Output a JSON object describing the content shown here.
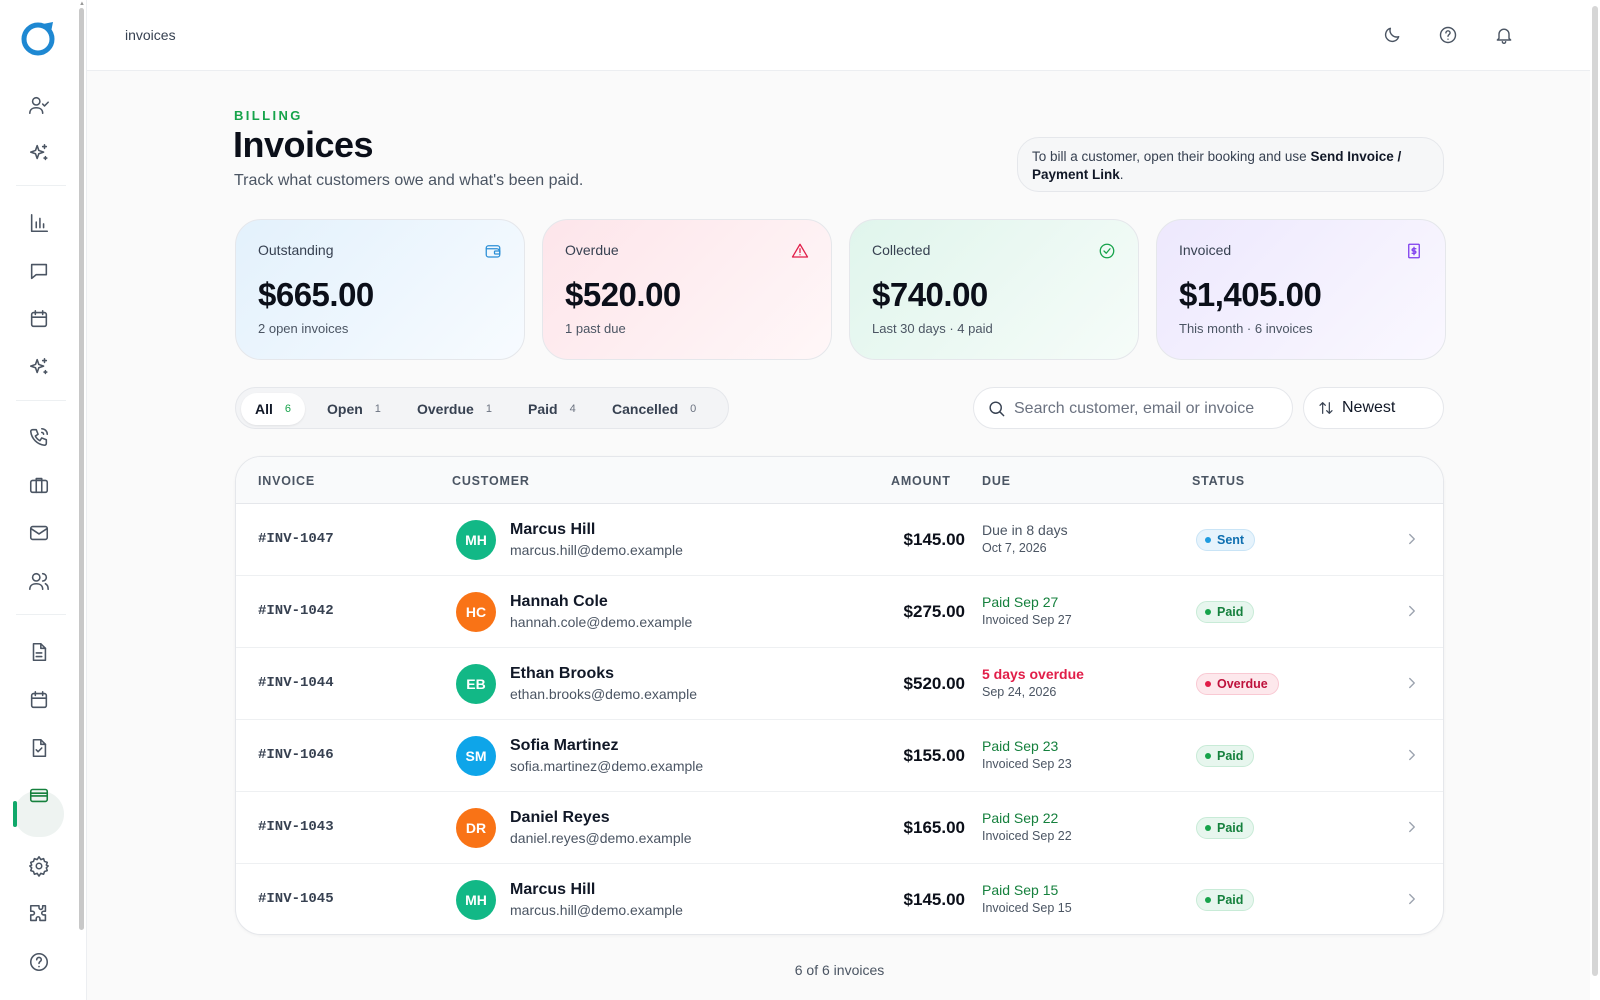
{
  "topbar": {
    "breadcrumb": "invoices"
  },
  "header": {
    "eyebrow": "BILLING",
    "title": "Invoices",
    "subtitle": "Track what customers owe and what's been paid.",
    "hint_prefix": "To bill a customer, open their booking and use ",
    "hint_action": "Send Invoice / Payment Link",
    "hint_suffix": "."
  },
  "stats": [
    {
      "label": "Outstanding",
      "value": "$665.00",
      "note": "2 open invoices",
      "icon": "wallet-icon"
    },
    {
      "label": "Overdue",
      "value": "$520.00",
      "note": "1 past due",
      "icon": "alert-triangle-icon"
    },
    {
      "label": "Collected",
      "value": "$740.00",
      "note": "Last 30 days · 4 paid",
      "icon": "check-circle-icon"
    },
    {
      "label": "Invoiced",
      "value": "$1,405.00",
      "note": "This month · 6 invoices",
      "icon": "receipt-icon"
    }
  ],
  "filters": [
    {
      "label": "All",
      "count": "6",
      "active": true
    },
    {
      "label": "Open",
      "count": "1"
    },
    {
      "label": "Overdue",
      "count": "1"
    },
    {
      "label": "Paid",
      "count": "4"
    },
    {
      "label": "Cancelled",
      "count": "0"
    }
  ],
  "search": {
    "placeholder": "Search customer, email or invoice",
    "value": ""
  },
  "sort": {
    "label": "Newest"
  },
  "table": {
    "columns": [
      "INVOICE",
      "CUSTOMER",
      "AMOUNT",
      "DUE",
      "STATUS"
    ],
    "rows": [
      {
        "id": "#INV-1047",
        "initials": "MH",
        "avatar_color": "#12b886",
        "name": "Marcus Hill",
        "email": "marcus.hill@demo.example",
        "amount": "$145.00",
        "due1": "Due in 8 days",
        "due2": "Oct 7, 2026",
        "due_tone": "normal",
        "status": "Sent",
        "status_kind": "sent"
      },
      {
        "id": "#INV-1042",
        "initials": "HC",
        "avatar_color": "#f97316",
        "name": "Hannah Cole",
        "email": "hannah.cole@demo.example",
        "amount": "$275.00",
        "due1": "Paid Sep 27",
        "due2": "Invoiced Sep 27",
        "due_tone": "green",
        "status": "Paid",
        "status_kind": "paid"
      },
      {
        "id": "#INV-1044",
        "initials": "EB",
        "avatar_color": "#12b886",
        "name": "Ethan Brooks",
        "email": "ethan.brooks@demo.example",
        "amount": "$520.00",
        "due1": "5 days overdue",
        "due2": "Sep 24, 2026",
        "due_tone": "red",
        "status": "Overdue",
        "status_kind": "overdue"
      },
      {
        "id": "#INV-1046",
        "initials": "SM",
        "avatar_color": "#0ea5e9",
        "name": "Sofia Martinez",
        "email": "sofia.martinez@demo.example",
        "amount": "$155.00",
        "due1": "Paid Sep 23",
        "due2": "Invoiced Sep 23",
        "due_tone": "green",
        "status": "Paid",
        "status_kind": "paid"
      },
      {
        "id": "#INV-1043",
        "initials": "DR",
        "avatar_color": "#f97316",
        "name": "Daniel Reyes",
        "email": "daniel.reyes@demo.example",
        "amount": "$165.00",
        "due1": "Paid Sep 22",
        "due2": "Invoiced Sep 22",
        "due_tone": "green",
        "status": "Paid",
        "status_kind": "paid"
      },
      {
        "id": "#INV-1045",
        "initials": "MH",
        "avatar_color": "#12b886",
        "name": "Marcus Hill",
        "email": "marcus.hill@demo.example",
        "amount": "$145.00",
        "due1": "Paid Sep 15",
        "due2": "Invoiced Sep 15",
        "due_tone": "green",
        "status": "Paid",
        "status_kind": "paid"
      }
    ]
  },
  "footer": {
    "count_text": "6 of 6 invoices"
  },
  "colors": {
    "accent": "#16a34a",
    "danger": "#e11d48",
    "info": "#1d9be0"
  }
}
